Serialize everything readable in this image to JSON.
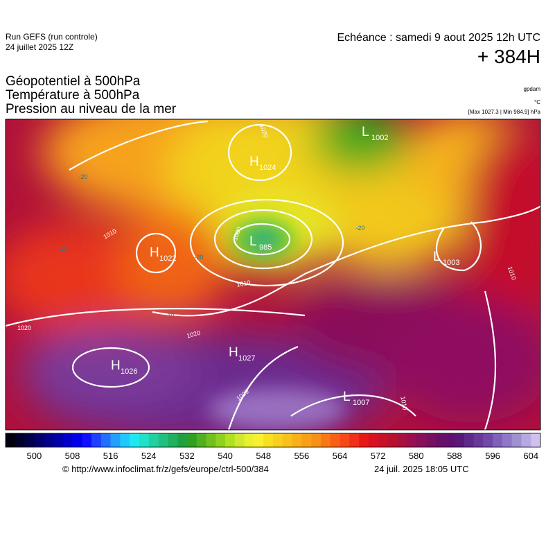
{
  "header": {
    "run": "Run GEFS (run controle)",
    "run_date": "24 juillet 2025 12Z",
    "valid": "Echéance : samedi 9 aout 2025 12h UTC",
    "lead": "+ 384H",
    "titles": [
      "Géopotentiel à 500hPa",
      "Température à 500hPa",
      "Pression au niveau de la mer"
    ],
    "units": [
      "gpdam",
      "°C",
      "[Max 1027.3 | Min 984.9] hPa"
    ]
  },
  "map": {
    "centers": [
      {
        "type": "L",
        "value": "1002"
      },
      {
        "type": "H",
        "value": "1024"
      },
      {
        "type": "L",
        "value": "985"
      },
      {
        "type": "H",
        "value": "1022"
      },
      {
        "type": "L",
        "value": "1003"
      },
      {
        "type": "H",
        "value": "1027"
      },
      {
        "type": "H",
        "value": "1026"
      },
      {
        "type": "L",
        "value": "1007"
      }
    ],
    "isobar_labels": [
      "1020",
      "1010",
      "1000",
      "1010",
      "1020",
      "1020",
      "1020",
      "1010",
      "1010"
    ],
    "temperature_labels": [
      "-20",
      "-20",
      "-20",
      "-10",
      "-10"
    ]
  },
  "colorbar": {
    "ticks": [
      500,
      508,
      516,
      524,
      532,
      540,
      548,
      556,
      564,
      572,
      580,
      588,
      596,
      604
    ]
  },
  "footer": {
    "source": "© http://www.infoclimat.fr/z/gefs/europe/ctrl-500/384",
    "generated": "24 juil. 2025 18:05 UTC"
  }
}
